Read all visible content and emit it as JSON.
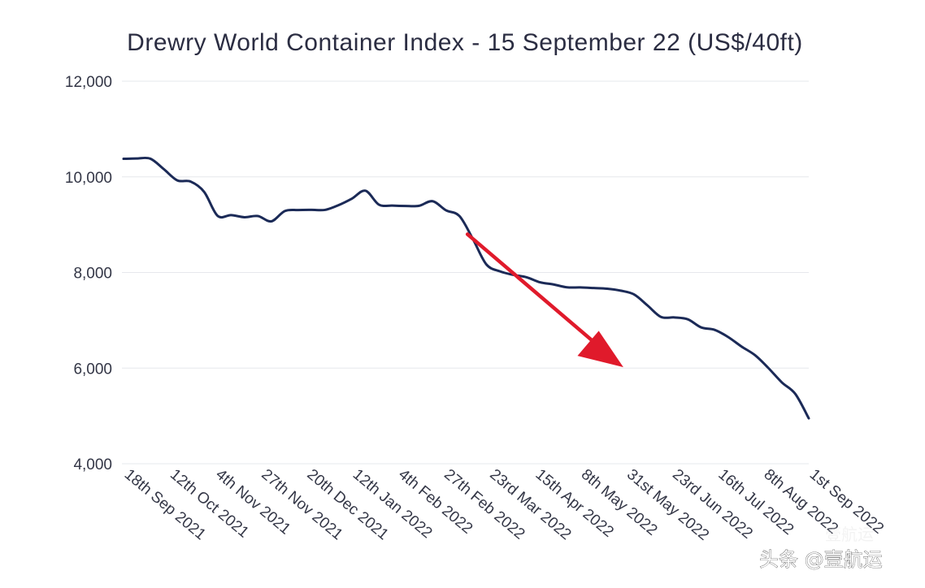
{
  "chart_data": {
    "type": "line",
    "title": "Drewry World Container Index - 15 September 22 (US$/40ft)",
    "xlabel": "",
    "ylabel": "",
    "ylim": [
      4000,
      12000
    ],
    "yticks": [
      4000,
      6000,
      8000,
      10000,
      12000
    ],
    "ytick_labels": [
      "4,000",
      "6,000",
      "8,000",
      "10,000",
      "12,000"
    ],
    "grid": true,
    "legend": "none",
    "x_tick_labels": [
      "18th Sep 2021",
      "12th Oct 2021",
      "4th Nov 2021",
      "27th Nov 2021",
      "20th Dec 2021",
      "12th Jan 2022",
      "4th Feb 2022",
      "27th Feb 2022",
      "23rd Mar 2022",
      "15th Apr 2022",
      "8th May 2022",
      "31st May 2022",
      "23rd Jun 2022",
      "16th Jul 2022",
      "8th Aug 2022",
      "1st Sep 2022"
    ],
    "series": [
      {
        "name": "Drewry WCI",
        "color": "#1b2a57",
        "values": [
          10377,
          10385,
          10379,
          10160,
          9926,
          9900,
          9685,
          9185,
          9200,
          9156,
          9180,
          9070,
          9285,
          9306,
          9310,
          9309,
          9408,
          9545,
          9710,
          9420,
          9399,
          9390,
          9395,
          9490,
          9300,
          9180,
          8700,
          8170,
          8025,
          7950,
          7900,
          7795,
          7750,
          7690,
          7687,
          7675,
          7661,
          7620,
          7540,
          7310,
          7070,
          7060,
          7020,
          6850,
          6800,
          6650,
          6450,
          6270,
          6000,
          5700,
          5460,
          4950
        ]
      }
    ],
    "annotations": [
      {
        "type": "arrow",
        "color": "#e01a2b",
        "from": {
          "x_index": 25.6,
          "y": 8800
        },
        "to": {
          "x_index": 37.2,
          "y": 6020
        }
      }
    ],
    "watermark": "头条 @壹航运"
  }
}
